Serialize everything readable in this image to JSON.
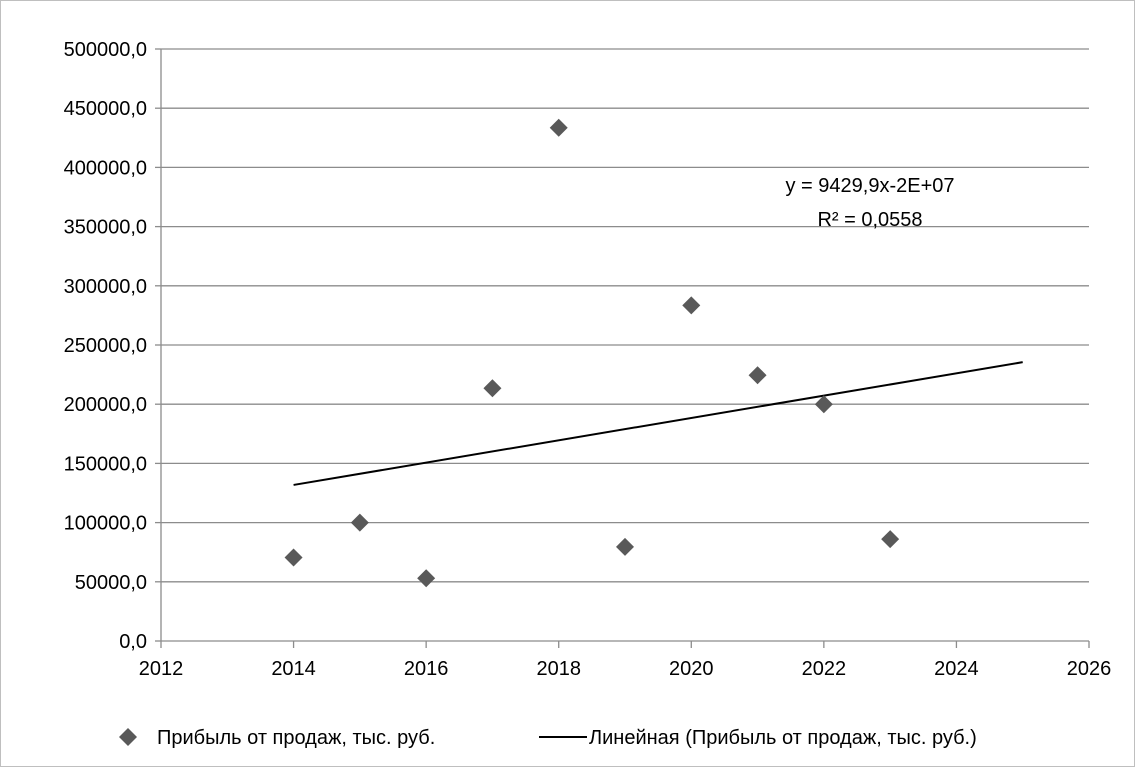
{
  "chart_data": {
    "type": "scatter",
    "xlim": [
      2012,
      2026
    ],
    "ylim": [
      0,
      500000
    ],
    "x_ticks": [
      2012,
      2014,
      2016,
      2018,
      2020,
      2022,
      2024,
      2026
    ],
    "x_tick_labels": [
      "2012",
      "2014",
      "2016",
      "2018",
      "2020",
      "2022",
      "2024",
      "2026"
    ],
    "y_ticks": [
      0,
      50000,
      100000,
      150000,
      200000,
      250000,
      300000,
      350000,
      400000,
      450000,
      500000
    ],
    "y_tick_labels": [
      "0,0",
      "50000,0",
      "100000,0",
      "150000,0",
      "200000,0",
      "250000,0",
      "300000,0",
      "350000,0",
      "400000,0",
      "450000,0",
      "500000,0"
    ],
    "grid": "horizontal",
    "legend_position": "bottom",
    "series": [
      {
        "name": "Прибыль от продаж, тыс. руб.",
        "marker": "diamond",
        "color": "#595959",
        "x": [
          2014,
          2015,
          2016,
          2017,
          2018,
          2019,
          2020,
          2021,
          2022,
          2023
        ],
        "y": [
          70500,
          100000,
          53000,
          213500,
          433500,
          79500,
          283500,
          224500,
          200000,
          86000
        ]
      }
    ],
    "trendline": {
      "name": "Линейная (Прибыль от продаж, тыс. руб.)",
      "type": "linear",
      "color": "#000000",
      "x": [
        2014,
        2025
      ],
      "y": [
        131800,
        235500
      ],
      "equation": "y = 9429,9x-2E+07",
      "r_squared": "R² = 0,0558"
    }
  }
}
